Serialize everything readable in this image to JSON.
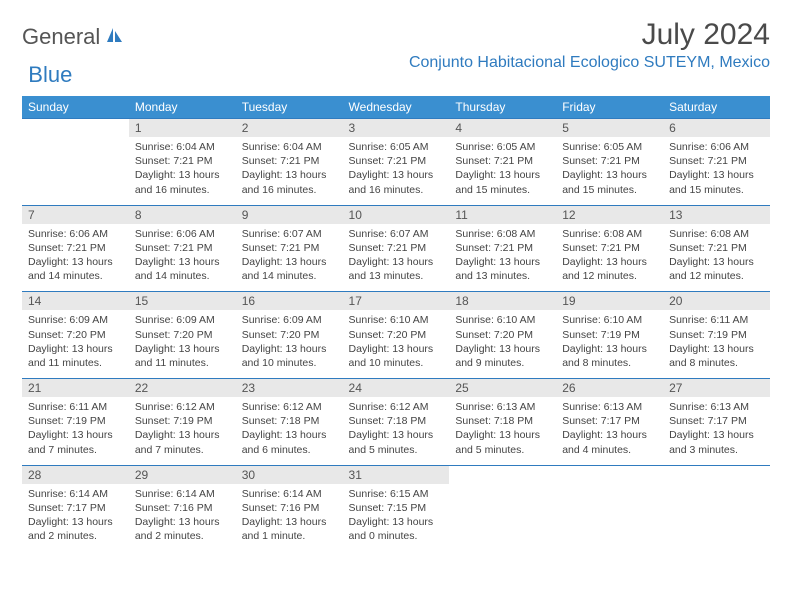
{
  "logo": {
    "general": "General",
    "blue": "Blue"
  },
  "title": {
    "month": "July 2024",
    "location": "Conjunto Habitacional Ecologico SUTEYM, Mexico"
  },
  "dayHeaders": [
    "Sunday",
    "Monday",
    "Tuesday",
    "Wednesday",
    "Thursday",
    "Friday",
    "Saturday"
  ],
  "colors": {
    "headerBg": "#3a8fd0",
    "accent": "#2f7bbf",
    "numRowBg": "#e8e8e8"
  },
  "weeks": [
    {
      "nums": [
        "",
        "1",
        "2",
        "3",
        "4",
        "5",
        "6"
      ],
      "info": [
        null,
        {
          "sr": "Sunrise: 6:04 AM",
          "ss": "Sunset: 7:21 PM",
          "d1": "Daylight: 13 hours",
          "d2": "and 16 minutes."
        },
        {
          "sr": "Sunrise: 6:04 AM",
          "ss": "Sunset: 7:21 PM",
          "d1": "Daylight: 13 hours",
          "d2": "and 16 minutes."
        },
        {
          "sr": "Sunrise: 6:05 AM",
          "ss": "Sunset: 7:21 PM",
          "d1": "Daylight: 13 hours",
          "d2": "and 16 minutes."
        },
        {
          "sr": "Sunrise: 6:05 AM",
          "ss": "Sunset: 7:21 PM",
          "d1": "Daylight: 13 hours",
          "d2": "and 15 minutes."
        },
        {
          "sr": "Sunrise: 6:05 AM",
          "ss": "Sunset: 7:21 PM",
          "d1": "Daylight: 13 hours",
          "d2": "and 15 minutes."
        },
        {
          "sr": "Sunrise: 6:06 AM",
          "ss": "Sunset: 7:21 PM",
          "d1": "Daylight: 13 hours",
          "d2": "and 15 minutes."
        }
      ]
    },
    {
      "nums": [
        "7",
        "8",
        "9",
        "10",
        "11",
        "12",
        "13"
      ],
      "info": [
        {
          "sr": "Sunrise: 6:06 AM",
          "ss": "Sunset: 7:21 PM",
          "d1": "Daylight: 13 hours",
          "d2": "and 14 minutes."
        },
        {
          "sr": "Sunrise: 6:06 AM",
          "ss": "Sunset: 7:21 PM",
          "d1": "Daylight: 13 hours",
          "d2": "and 14 minutes."
        },
        {
          "sr": "Sunrise: 6:07 AM",
          "ss": "Sunset: 7:21 PM",
          "d1": "Daylight: 13 hours",
          "d2": "and 14 minutes."
        },
        {
          "sr": "Sunrise: 6:07 AM",
          "ss": "Sunset: 7:21 PM",
          "d1": "Daylight: 13 hours",
          "d2": "and 13 minutes."
        },
        {
          "sr": "Sunrise: 6:08 AM",
          "ss": "Sunset: 7:21 PM",
          "d1": "Daylight: 13 hours",
          "d2": "and 13 minutes."
        },
        {
          "sr": "Sunrise: 6:08 AM",
          "ss": "Sunset: 7:21 PM",
          "d1": "Daylight: 13 hours",
          "d2": "and 12 minutes."
        },
        {
          "sr": "Sunrise: 6:08 AM",
          "ss": "Sunset: 7:21 PM",
          "d1": "Daylight: 13 hours",
          "d2": "and 12 minutes."
        }
      ]
    },
    {
      "nums": [
        "14",
        "15",
        "16",
        "17",
        "18",
        "19",
        "20"
      ],
      "info": [
        {
          "sr": "Sunrise: 6:09 AM",
          "ss": "Sunset: 7:20 PM",
          "d1": "Daylight: 13 hours",
          "d2": "and 11 minutes."
        },
        {
          "sr": "Sunrise: 6:09 AM",
          "ss": "Sunset: 7:20 PM",
          "d1": "Daylight: 13 hours",
          "d2": "and 11 minutes."
        },
        {
          "sr": "Sunrise: 6:09 AM",
          "ss": "Sunset: 7:20 PM",
          "d1": "Daylight: 13 hours",
          "d2": "and 10 minutes."
        },
        {
          "sr": "Sunrise: 6:10 AM",
          "ss": "Sunset: 7:20 PM",
          "d1": "Daylight: 13 hours",
          "d2": "and 10 minutes."
        },
        {
          "sr": "Sunrise: 6:10 AM",
          "ss": "Sunset: 7:20 PM",
          "d1": "Daylight: 13 hours",
          "d2": "and 9 minutes."
        },
        {
          "sr": "Sunrise: 6:10 AM",
          "ss": "Sunset: 7:19 PM",
          "d1": "Daylight: 13 hours",
          "d2": "and 8 minutes."
        },
        {
          "sr": "Sunrise: 6:11 AM",
          "ss": "Sunset: 7:19 PM",
          "d1": "Daylight: 13 hours",
          "d2": "and 8 minutes."
        }
      ]
    },
    {
      "nums": [
        "21",
        "22",
        "23",
        "24",
        "25",
        "26",
        "27"
      ],
      "info": [
        {
          "sr": "Sunrise: 6:11 AM",
          "ss": "Sunset: 7:19 PM",
          "d1": "Daylight: 13 hours",
          "d2": "and 7 minutes."
        },
        {
          "sr": "Sunrise: 6:12 AM",
          "ss": "Sunset: 7:19 PM",
          "d1": "Daylight: 13 hours",
          "d2": "and 7 minutes."
        },
        {
          "sr": "Sunrise: 6:12 AM",
          "ss": "Sunset: 7:18 PM",
          "d1": "Daylight: 13 hours",
          "d2": "and 6 minutes."
        },
        {
          "sr": "Sunrise: 6:12 AM",
          "ss": "Sunset: 7:18 PM",
          "d1": "Daylight: 13 hours",
          "d2": "and 5 minutes."
        },
        {
          "sr": "Sunrise: 6:13 AM",
          "ss": "Sunset: 7:18 PM",
          "d1": "Daylight: 13 hours",
          "d2": "and 5 minutes."
        },
        {
          "sr": "Sunrise: 6:13 AM",
          "ss": "Sunset: 7:17 PM",
          "d1": "Daylight: 13 hours",
          "d2": "and 4 minutes."
        },
        {
          "sr": "Sunrise: 6:13 AM",
          "ss": "Sunset: 7:17 PM",
          "d1": "Daylight: 13 hours",
          "d2": "and 3 minutes."
        }
      ]
    },
    {
      "nums": [
        "28",
        "29",
        "30",
        "31",
        "",
        "",
        ""
      ],
      "info": [
        {
          "sr": "Sunrise: 6:14 AM",
          "ss": "Sunset: 7:17 PM",
          "d1": "Daylight: 13 hours",
          "d2": "and 2 minutes."
        },
        {
          "sr": "Sunrise: 6:14 AM",
          "ss": "Sunset: 7:16 PM",
          "d1": "Daylight: 13 hours",
          "d2": "and 2 minutes."
        },
        {
          "sr": "Sunrise: 6:14 AM",
          "ss": "Sunset: 7:16 PM",
          "d1": "Daylight: 13 hours",
          "d2": "and 1 minute."
        },
        {
          "sr": "Sunrise: 6:15 AM",
          "ss": "Sunset: 7:15 PM",
          "d1": "Daylight: 13 hours",
          "d2": "and 0 minutes."
        },
        null,
        null,
        null
      ]
    }
  ]
}
